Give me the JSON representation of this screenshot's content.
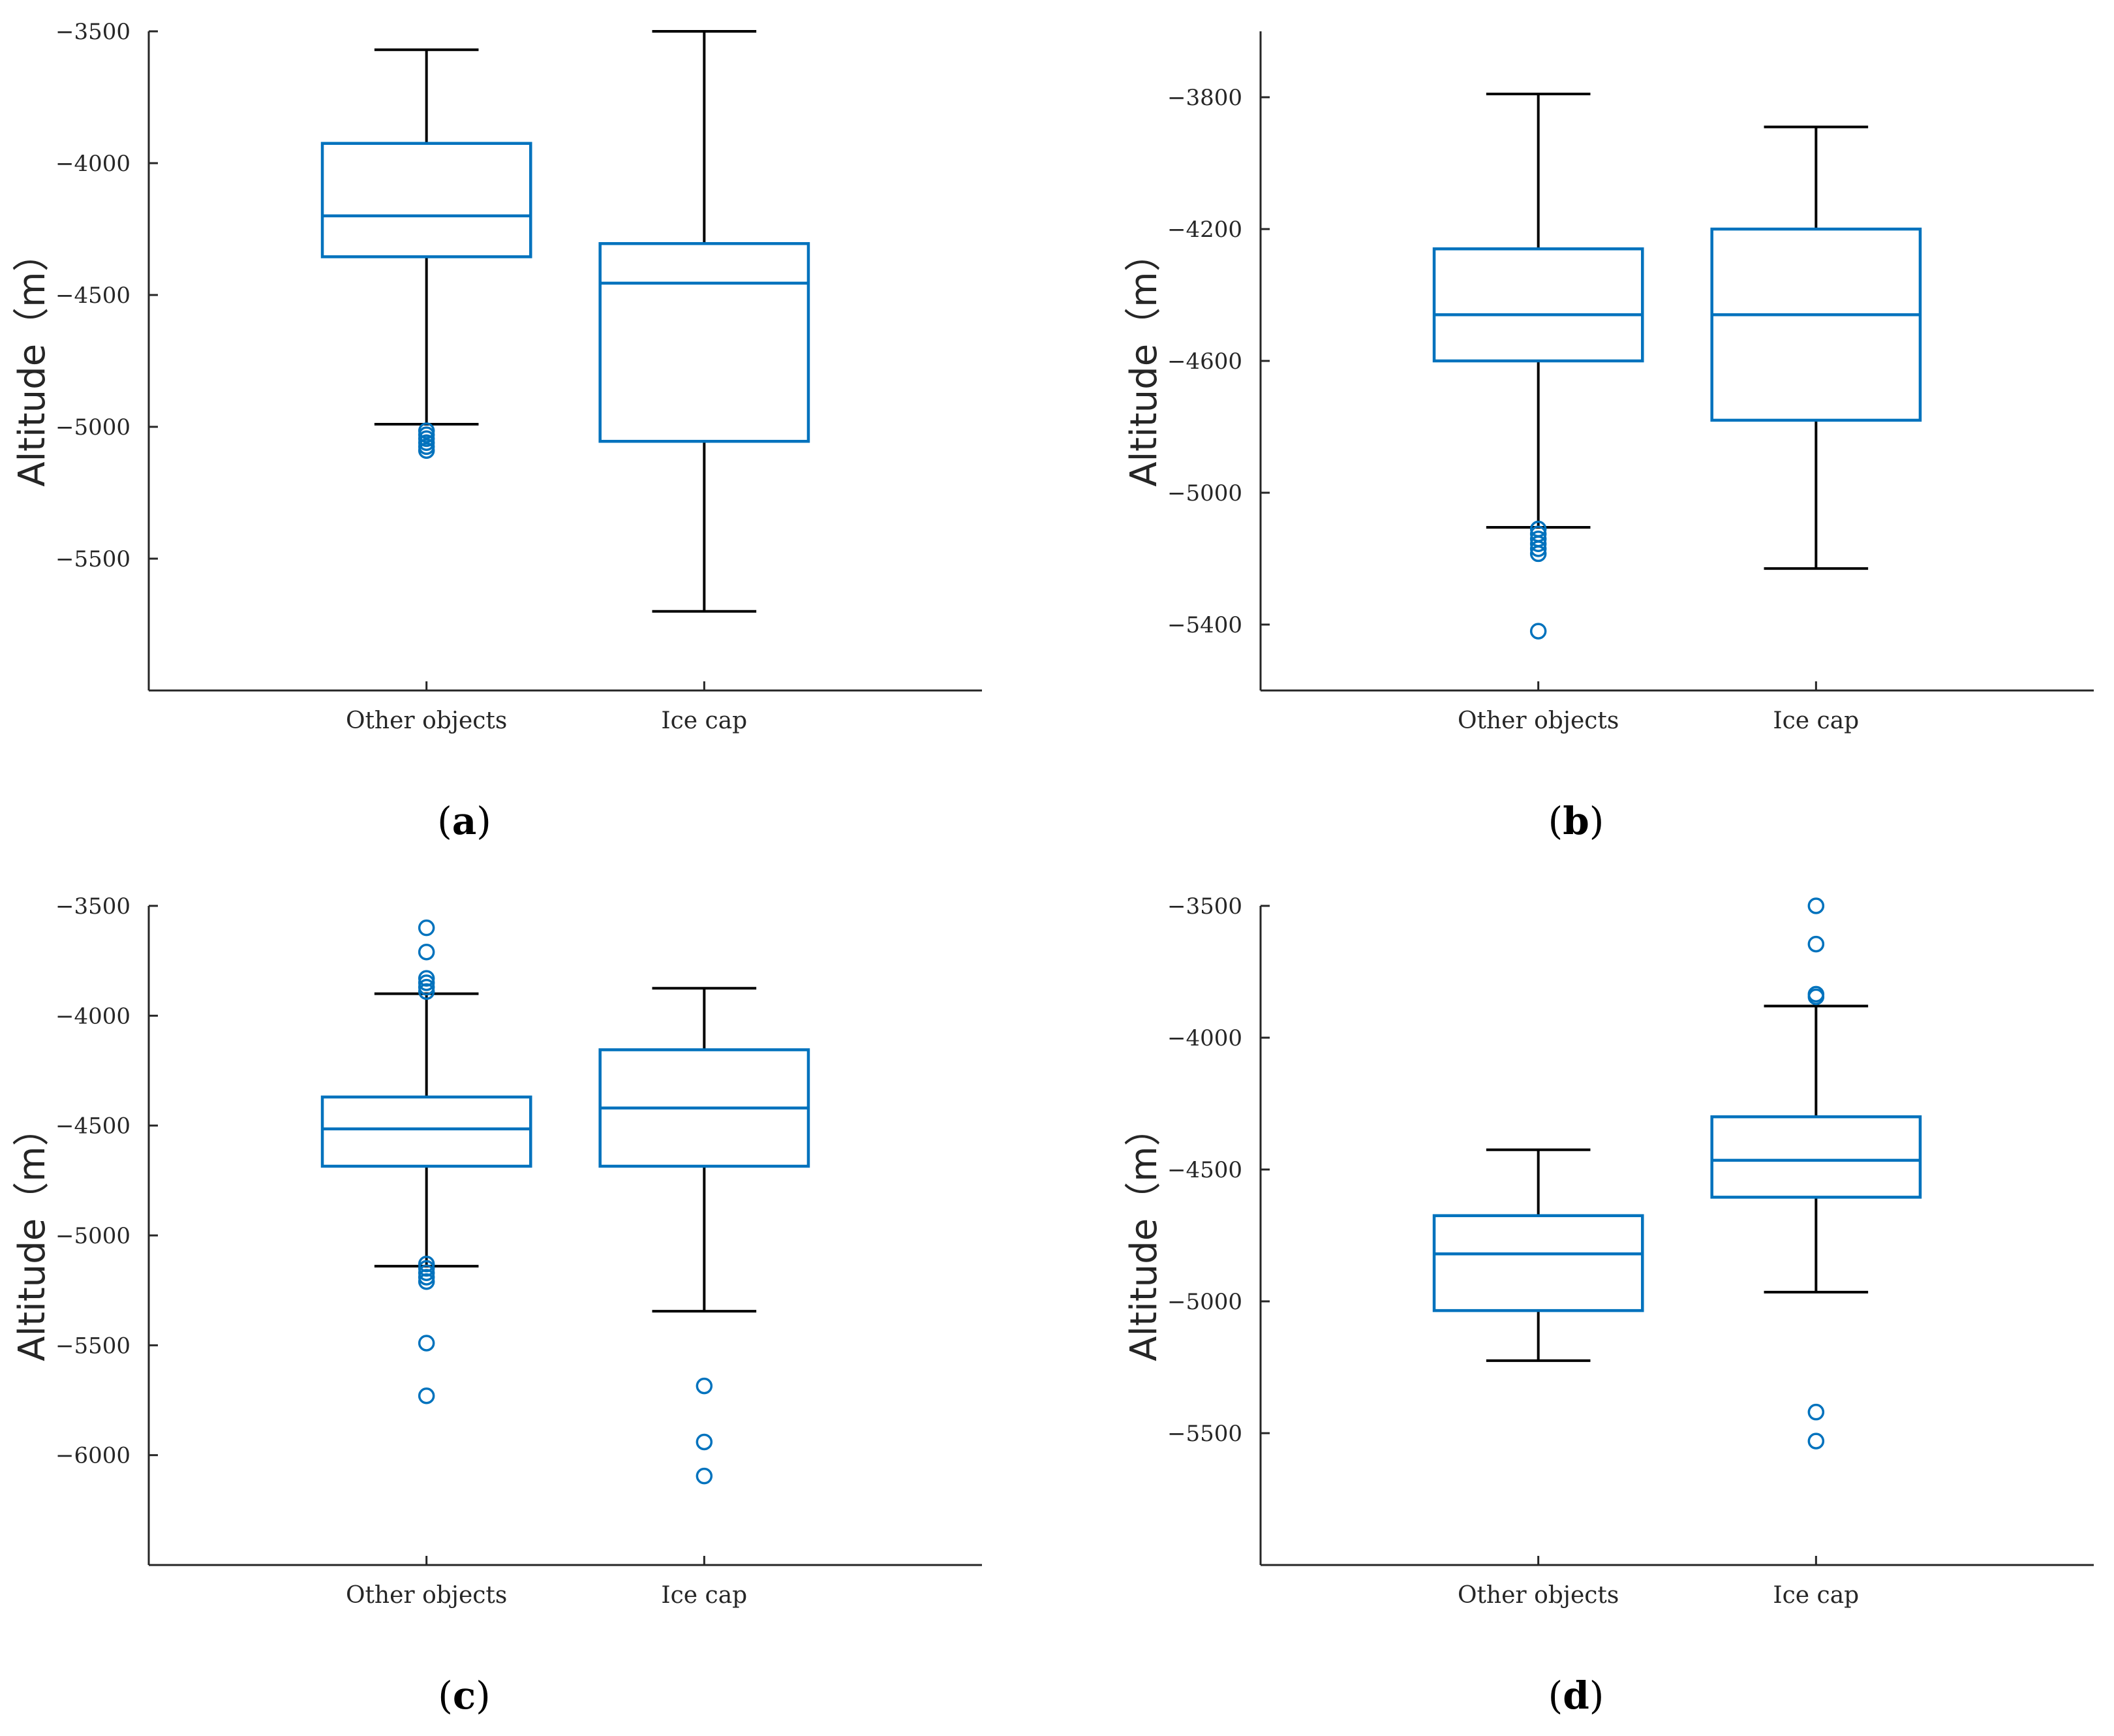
{
  "chart_data": [
    {
      "type": "box",
      "caption": "(a)",
      "ylabel": "Altitude（m）",
      "ylim": [
        -6000,
        -3500
      ],
      "yticks": [
        -5500,
        -5000,
        -4500,
        -4000,
        -3500
      ],
      "ytick_labels": [
        "−5500",
        "−5000",
        "−4500",
        "−4000",
        "−3500"
      ],
      "categories": [
        "Other objects",
        "Ice cap"
      ],
      "boxes": [
        {
          "whisker_low": -4990,
          "q1": -4355,
          "median": -4200,
          "q3": -3925,
          "whisker_high": -3570,
          "outliers": [
            -5015,
            -5030,
            -5045,
            -5060,
            -5075,
            -5090
          ]
        },
        {
          "whisker_low": -5700,
          "q1": -5055,
          "median": -4455,
          "q3": -4305,
          "whisker_high": -3500,
          "outliers": []
        }
      ]
    },
    {
      "type": "box",
      "caption": "(b)",
      "ylabel": "Altitude（m）",
      "ylim": [
        -5600,
        -3600
      ],
      "yticks": [
        -5400,
        -5000,
        -4600,
        -4200,
        -3800
      ],
      "ytick_labels": [
        "−5400",
        "−5000",
        "−4600",
        "−4200",
        "−3800"
      ],
      "categories": [
        "Other objects",
        "Ice cap"
      ],
      "boxes": [
        {
          "whisker_low": -5105,
          "q1": -4600,
          "median": -4460,
          "q3": -4260,
          "whisker_high": -3790,
          "outliers": [
            -5110,
            -5125,
            -5140,
            -5155,
            -5170,
            -5185,
            -5420
          ]
        },
        {
          "whisker_low": -5230,
          "q1": -4780,
          "median": -4460,
          "q3": -4200,
          "whisker_high": -3890,
          "outliers": []
        }
      ]
    },
    {
      "type": "box",
      "caption": "(c)",
      "ylabel": "Altitude（m）",
      "ylim": [
        -6500,
        -3500
      ],
      "yticks": [
        -6000,
        -5500,
        -5000,
        -4500,
        -4000,
        -3500
      ],
      "ytick_labels": [
        "−6000",
        "−5500",
        "−5000",
        "−4500",
        "−4000",
        "−3500"
      ],
      "categories": [
        "Other objects",
        "Ice cap"
      ],
      "boxes": [
        {
          "whisker_low": -5140,
          "q1": -4685,
          "median": -4515,
          "q3": -4370,
          "whisker_high": -3900,
          "outliers": [
            -3600,
            -3710,
            -3830,
            -3850,
            -3870,
            -3890,
            -5130,
            -5150,
            -5170,
            -5190,
            -5210,
            -5490,
            -5730
          ]
        },
        {
          "whisker_low": -5345,
          "q1": -4685,
          "median": -4420,
          "q3": -4155,
          "whisker_high": -3875,
          "outliers": [
            -5685,
            -5940,
            -6095
          ]
        }
      ]
    },
    {
      "type": "box",
      "caption": "(d)",
      "ylabel": "Altitude（m）",
      "ylim": [
        -6000,
        -3500
      ],
      "yticks": [
        -5500,
        -5000,
        -4500,
        -4000,
        -3500
      ],
      "ytick_labels": [
        "−5500",
        "−5000",
        "−4500",
        "−4000",
        "−3500"
      ],
      "categories": [
        "Other objects",
        "Ice cap"
      ],
      "boxes": [
        {
          "whisker_low": -5225,
          "q1": -5035,
          "median": -4820,
          "q3": -4675,
          "whisker_high": -4425,
          "outliers": []
        },
        {
          "whisker_low": -4965,
          "q1": -4605,
          "median": -4465,
          "q3": -4300,
          "whisker_high": -3880,
          "outliers": [
            -3500,
            -3645,
            -3835,
            -3845,
            -5420,
            -5530
          ]
        }
      ]
    }
  ],
  "colors": {
    "box": "#0072BD",
    "whisker": "#000000",
    "outlier": "#0072BD",
    "axis": "#262626"
  }
}
